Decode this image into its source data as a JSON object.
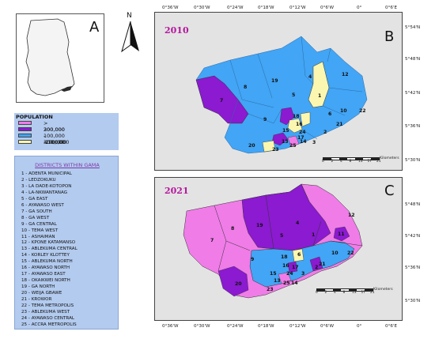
{
  "panels": {
    "a_letter": "A",
    "b_letter": "B",
    "c_letter": "C",
    "b_year": "2010",
    "c_year": "2021"
  },
  "north_arrow": {
    "label": "N",
    "icon": "north-arrow-icon"
  },
  "legend": {
    "title": "POPULATION",
    "items": [
      {
        "label": "> 300,000",
        "color": "#f07ce8"
      },
      {
        "label": "200,000 - 300,000",
        "color": "#8b1ad0"
      },
      {
        "label": "100,000 -200,000",
        "color": "#42a5f5"
      },
      {
        "label": "<100,000",
        "color": "#fbf7b0"
      }
    ]
  },
  "districts": {
    "title": "DISTRICTS WITHIN GAMA",
    "items": [
      "1  -  ADENTA MUNICIPAL",
      "2  -  LEDZOKUKU",
      "3  -  LA DADE-KOTOPON",
      "4  -  LA-NKWANTANAG",
      "5  -  GA EAST",
      "6  -  AYAWASO WEST",
      "7  -  GA SOUTH",
      "8  -  GA WEST",
      "9  -  GA CENTRAL",
      "10 -  TEMA WEST",
      "11 -  ASHAIMAN",
      "12 -  KPONE KATAMANSO",
      "13 -  ABLEKUMA CENTRAL",
      "14 -  KORLEY KLOTTEY",
      "15 -  ABLEKUMA NORTH",
      "16 -  AYAWASO NORTH",
      "17 -  AYAWASO EAST",
      "18 -  OKAIKWEI NORTH",
      "19 -  GA NORTH",
      "20 -  WEIJA GBAWE",
      "21 -  KROWOR",
      "22 -  TEMA METROPOLIS",
      "23 -  ABLEKUMA WEST",
      "24 -  AYAWASO CENTRAL",
      "25 -  ACCRA METROPOLIS"
    ]
  },
  "coords": {
    "top": [
      "0°36'W",
      "0°30'W",
      "0°24'W",
      "0°18'W",
      "0°12'W",
      "0°6'W",
      "0°",
      "0°6'E"
    ],
    "bottom": [
      "0°36'W",
      "0°30'W",
      "0°24'W",
      "0°18'W",
      "0°12'W",
      "0°6'W",
      "0°",
      "0°6'E"
    ],
    "right_b": [
      "5°54'N",
      "5°48'N",
      "5°42'N",
      "5°36'N",
      "5°30'N"
    ],
    "right_c": [
      "5°48'N",
      "5°42'N",
      "5°36'N",
      "5°30'N"
    ]
  },
  "scale_bar": {
    "ticks": [
      "0",
      "2",
      "4",
      "8",
      "13",
      "17",
      "21"
    ],
    "unit": "Kilometers"
  },
  "map_b_labels": [
    "7",
    "8",
    "19",
    "4",
    "12",
    "5",
    "1",
    "9",
    "18",
    "6",
    "2",
    "10",
    "22",
    "15",
    "16",
    "24",
    "17",
    "3",
    "21",
    "20",
    "14",
    "23",
    "13",
    "25"
  ],
  "map_c_labels": [
    "12",
    "7",
    "8",
    "19",
    "5",
    "4",
    "1",
    "11",
    "9",
    "18",
    "6",
    "10",
    "22",
    "15",
    "16",
    "17",
    "24",
    "3",
    "21",
    "2",
    "14",
    "13",
    "23",
    "25",
    "20"
  ],
  "colors": {
    "pink": "#f07ce8",
    "purple": "#8b1ad0",
    "blue": "#42a5f5",
    "yellow": "#fbf7b0"
  }
}
